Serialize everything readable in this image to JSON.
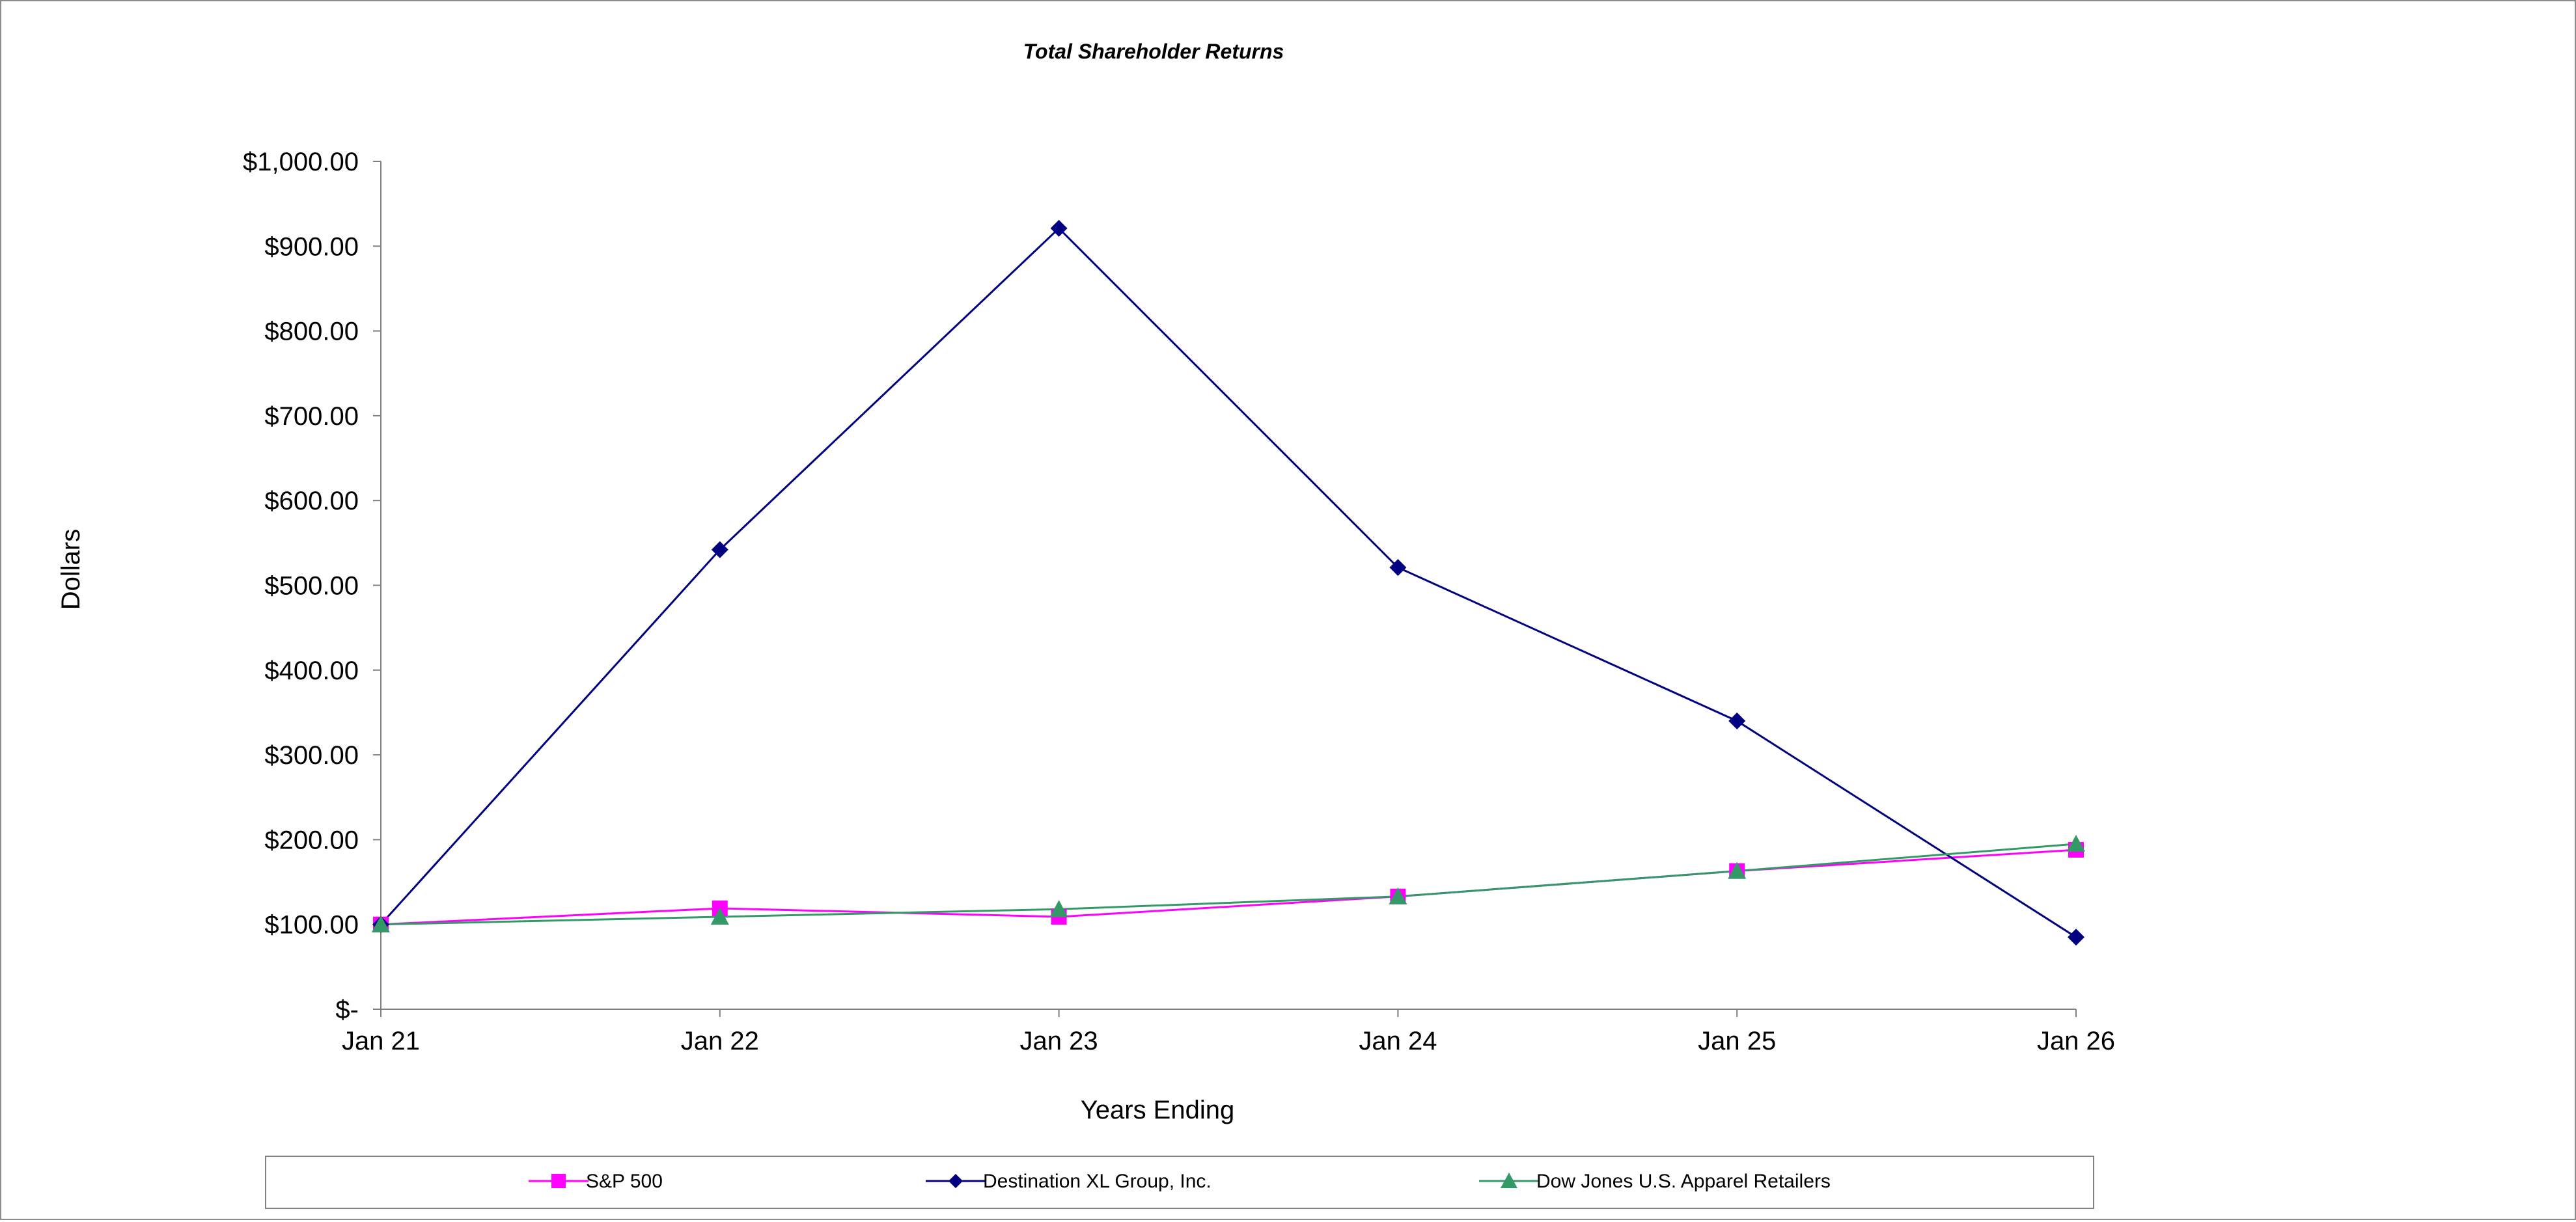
{
  "chart_data": {
    "type": "line",
    "title": "Total Shareholder Returns",
    "xlabel": "Years Ending",
    "ylabel": "Dollars",
    "categories": [
      "Jan 21",
      "Jan 22",
      "Jan 23",
      "Jan 24",
      "Jan 25",
      "Jan 26"
    ],
    "ylim": [
      0,
      1000
    ],
    "yticks": [
      {
        "value": 1000,
        "label": "$1,000.00"
      },
      {
        "value": 900,
        "label": "$900.00"
      },
      {
        "value": 800,
        "label": "$800.00"
      },
      {
        "value": 700,
        "label": "$700.00"
      },
      {
        "value": 600,
        "label": "$600.00"
      },
      {
        "value": 500,
        "label": "$500.00"
      },
      {
        "value": 400,
        "label": "$400.00"
      },
      {
        "value": 300,
        "label": "$300.00"
      },
      {
        "value": 200,
        "label": "$200.00"
      },
      {
        "value": 100,
        "label": "$100.00"
      },
      {
        "value": 0,
        "label": "$-"
      }
    ],
    "grid": false,
    "legend_position": "bottom",
    "series": [
      {
        "name": "S&P 500",
        "color": "#ff00ff",
        "marker": "square",
        "values": [
          100,
          119,
          109,
          133,
          163,
          188
        ]
      },
      {
        "name": "Destination XL Group, Inc.",
        "color": "#000080",
        "marker": "diamond",
        "values": [
          100,
          542,
          921,
          521,
          340,
          85
        ]
      },
      {
        "name": "Dow Jones U.S. Apparel Retailers",
        "color": "#339966",
        "marker": "triangle",
        "values": [
          100,
          109,
          118,
          133,
          163,
          195
        ]
      }
    ]
  }
}
